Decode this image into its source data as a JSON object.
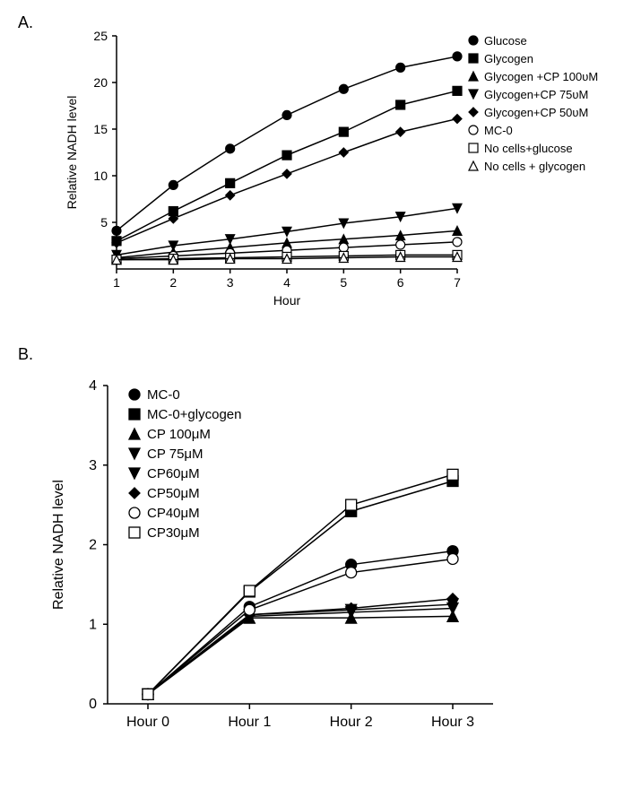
{
  "panelA": {
    "label": "A.",
    "type": "line",
    "xlabel": "Hour",
    "ylabel": "Relative NADH level",
    "label_fontsize": 14,
    "xlim": [
      1,
      7
    ],
    "ylim": [
      0,
      25
    ],
    "xticks": [
      1,
      2,
      3,
      4,
      5,
      6,
      7
    ],
    "yticks": [
      5,
      10,
      15,
      20,
      25
    ],
    "axis_color": "#000000",
    "background_color": "#ffffff",
    "line_width": 1.5,
    "marker_size": 5,
    "series": [
      {
        "name": "Glucose",
        "marker": "circle",
        "fill": "#000000",
        "stroke": "#000000",
        "x": [
          1,
          2,
          3,
          4,
          5,
          6,
          7
        ],
        "y": [
          4.1,
          9.0,
          12.9,
          16.5,
          19.3,
          21.6,
          22.8
        ]
      },
      {
        "name": "Glycogen",
        "marker": "square",
        "fill": "#000000",
        "stroke": "#000000",
        "x": [
          1,
          2,
          3,
          4,
          5,
          6,
          7
        ],
        "y": [
          3.0,
          6.2,
          9.2,
          12.2,
          14.7,
          17.6,
          19.1
        ]
      },
      {
        "name": "Glycogen +CP 100υM",
        "marker": "triangle-up",
        "fill": "#000000",
        "stroke": "#000000",
        "x": [
          1,
          2,
          3,
          4,
          5,
          6,
          7
        ],
        "y": [
          1.2,
          1.8,
          2.3,
          2.8,
          3.2,
          3.6,
          4.1
        ]
      },
      {
        "name": "Glycogen+CP 75υM",
        "marker": "triangle-down",
        "fill": "#000000",
        "stroke": "#000000",
        "x": [
          1,
          2,
          3,
          4,
          5,
          6,
          7
        ],
        "y": [
          1.5,
          2.5,
          3.2,
          4.0,
          4.9,
          5.6,
          6.5
        ]
      },
      {
        "name": "Glycogen+CP 50υM",
        "marker": "diamond",
        "fill": "#000000",
        "stroke": "#000000",
        "x": [
          1,
          2,
          3,
          4,
          5,
          6,
          7
        ],
        "y": [
          2.8,
          5.4,
          7.9,
          10.2,
          12.5,
          14.7,
          16.1
        ]
      },
      {
        "name": "MC-0",
        "marker": "circle",
        "fill": "#ffffff",
        "stroke": "#000000",
        "x": [
          1,
          2,
          3,
          4,
          5,
          6,
          7
        ],
        "y": [
          1.1,
          1.4,
          1.7,
          2.0,
          2.3,
          2.6,
          2.9
        ]
      },
      {
        "name": "No cells+glucose",
        "marker": "square",
        "fill": "#ffffff",
        "stroke": "#000000",
        "x": [
          1,
          2,
          3,
          4,
          5,
          6,
          7
        ],
        "y": [
          1.0,
          1.1,
          1.2,
          1.3,
          1.4,
          1.5,
          1.5
        ]
      },
      {
        "name": "No cells + glycogen",
        "marker": "triangle-up",
        "fill": "#ffffff",
        "stroke": "#000000",
        "x": [
          1,
          2,
          3,
          4,
          5,
          6,
          7
        ],
        "y": [
          1.0,
          1.0,
          1.1,
          1.1,
          1.2,
          1.3,
          1.3
        ]
      }
    ]
  },
  "panelB": {
    "label": "B.",
    "type": "line",
    "xlabel": "",
    "ylabel": "Relative NADH level",
    "label_fontsize": 14,
    "xcategories": [
      "Hour 0",
      "Hour 1",
      "Hour 2",
      "Hour 3"
    ],
    "ylim": [
      0,
      4
    ],
    "yticks": [
      0,
      1,
      2,
      3,
      4
    ],
    "axis_color": "#000000",
    "background_color": "#ffffff",
    "line_width": 1.5,
    "marker_size": 6,
    "series": [
      {
        "name": "MC-0",
        "marker": "circle",
        "fill": "#000000",
        "stroke": "#000000",
        "x": [
          0,
          1,
          2,
          3
        ],
        "y": [
          0.12,
          1.22,
          1.75,
          1.92
        ]
      },
      {
        "name": "MC-0+glycogen",
        "marker": "square",
        "fill": "#000000",
        "stroke": "#000000",
        "x": [
          0,
          1,
          2,
          3
        ],
        "y": [
          0.12,
          1.41,
          2.42,
          2.8
        ]
      },
      {
        "name": "CP 100μM",
        "marker": "triangle-up",
        "fill": "#000000",
        "stroke": "#000000",
        "x": [
          0,
          1,
          2,
          3
        ],
        "y": [
          0.12,
          1.08,
          1.08,
          1.1
        ]
      },
      {
        "name": "CP 75μM",
        "marker": "triangle-down",
        "fill": "#000000",
        "stroke": "#000000",
        "x": [
          0,
          1,
          2,
          3
        ],
        "y": [
          0.12,
          1.1,
          1.15,
          1.2
        ]
      },
      {
        "name": "CP60μM",
        "marker": "triangle-down",
        "fill": "#000000",
        "stroke": "#000000",
        "x": [
          0,
          1,
          2,
          3
        ],
        "y": [
          0.12,
          1.12,
          1.18,
          1.25
        ]
      },
      {
        "name": "CP50μM",
        "marker": "diamond",
        "fill": "#000000",
        "stroke": "#000000",
        "x": [
          0,
          1,
          2,
          3
        ],
        "y": [
          0.12,
          1.12,
          1.2,
          1.32
        ]
      },
      {
        "name": "CP40μM",
        "marker": "circle",
        "fill": "#ffffff",
        "stroke": "#000000",
        "x": [
          0,
          1,
          2,
          3
        ],
        "y": [
          0.12,
          1.18,
          1.65,
          1.82
        ]
      },
      {
        "name": "CP30μM",
        "marker": "square",
        "fill": "#ffffff",
        "stroke": "#000000",
        "x": [
          0,
          1,
          2,
          3
        ],
        "y": [
          0.12,
          1.42,
          2.5,
          2.88
        ]
      }
    ]
  }
}
